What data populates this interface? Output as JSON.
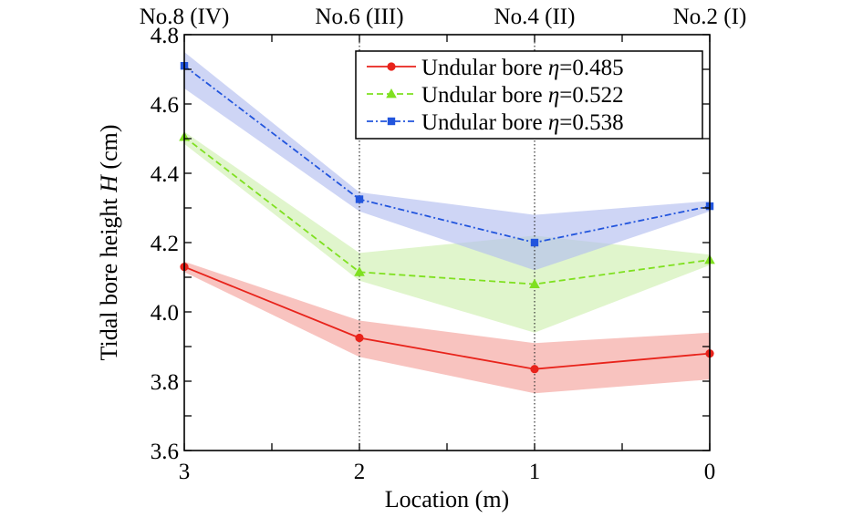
{
  "chart_data": {
    "type": "line",
    "xlabel": "Location (m)",
    "ylabel_prefix": "Tidal bore height ",
    "ylabel_var": "H",
    "ylabel_suffix": " (cm)",
    "x": [
      3,
      2,
      1,
      0
    ],
    "xlim": [
      3,
      0
    ],
    "x_ticks": [
      3,
      2,
      1,
      0
    ],
    "ylim": [
      3.6,
      4.8
    ],
    "y_ticks": [
      "3.6",
      "3.8",
      "4.0",
      "4.2",
      "4.4",
      "4.6",
      "4.8"
    ],
    "top_labels": [
      "No.8 (IV)",
      "No.6 (III)",
      "No.4 (II)",
      "No.2 (I)"
    ],
    "vertical_reference_lines_at_x": [
      2,
      1
    ],
    "legend_position": "top-right",
    "grid": false,
    "series": [
      {
        "label_text": "Undular bore ",
        "label_eta": "η",
        "label_value": "=0.485",
        "color": "#e8231b",
        "fill_color": "#f4a39c",
        "line_style": "solid",
        "marker": "circle",
        "values": [
          4.13,
          3.925,
          3.835,
          3.88
        ],
        "band_upper": [
          4.145,
          3.975,
          3.91,
          3.94
        ],
        "band_lower": [
          4.115,
          3.87,
          3.765,
          3.805
        ]
      },
      {
        "label_text": "Undular bore ",
        "label_eta": "η",
        "label_value": "=0.522",
        "color": "#7fe020",
        "fill_color": "#cff0b0",
        "line_style": "dashed",
        "marker": "triangle",
        "values": [
          4.505,
          4.115,
          4.08,
          4.15
        ],
        "band_upper": [
          4.52,
          4.17,
          4.22,
          4.165
        ],
        "band_lower": [
          4.485,
          4.09,
          3.94,
          4.135
        ]
      },
      {
        "label_text": "Undular bore ",
        "label_eta": "η",
        "label_value": "=0.538",
        "color": "#2255dd",
        "fill_color": "#b4bef0",
        "line_style": "dashdot",
        "marker": "square",
        "values": [
          4.71,
          4.325,
          4.2,
          4.305
        ],
        "band_upper": [
          4.75,
          4.345,
          4.28,
          4.32
        ],
        "band_lower": [
          4.645,
          4.29,
          4.12,
          4.29
        ]
      }
    ]
  }
}
